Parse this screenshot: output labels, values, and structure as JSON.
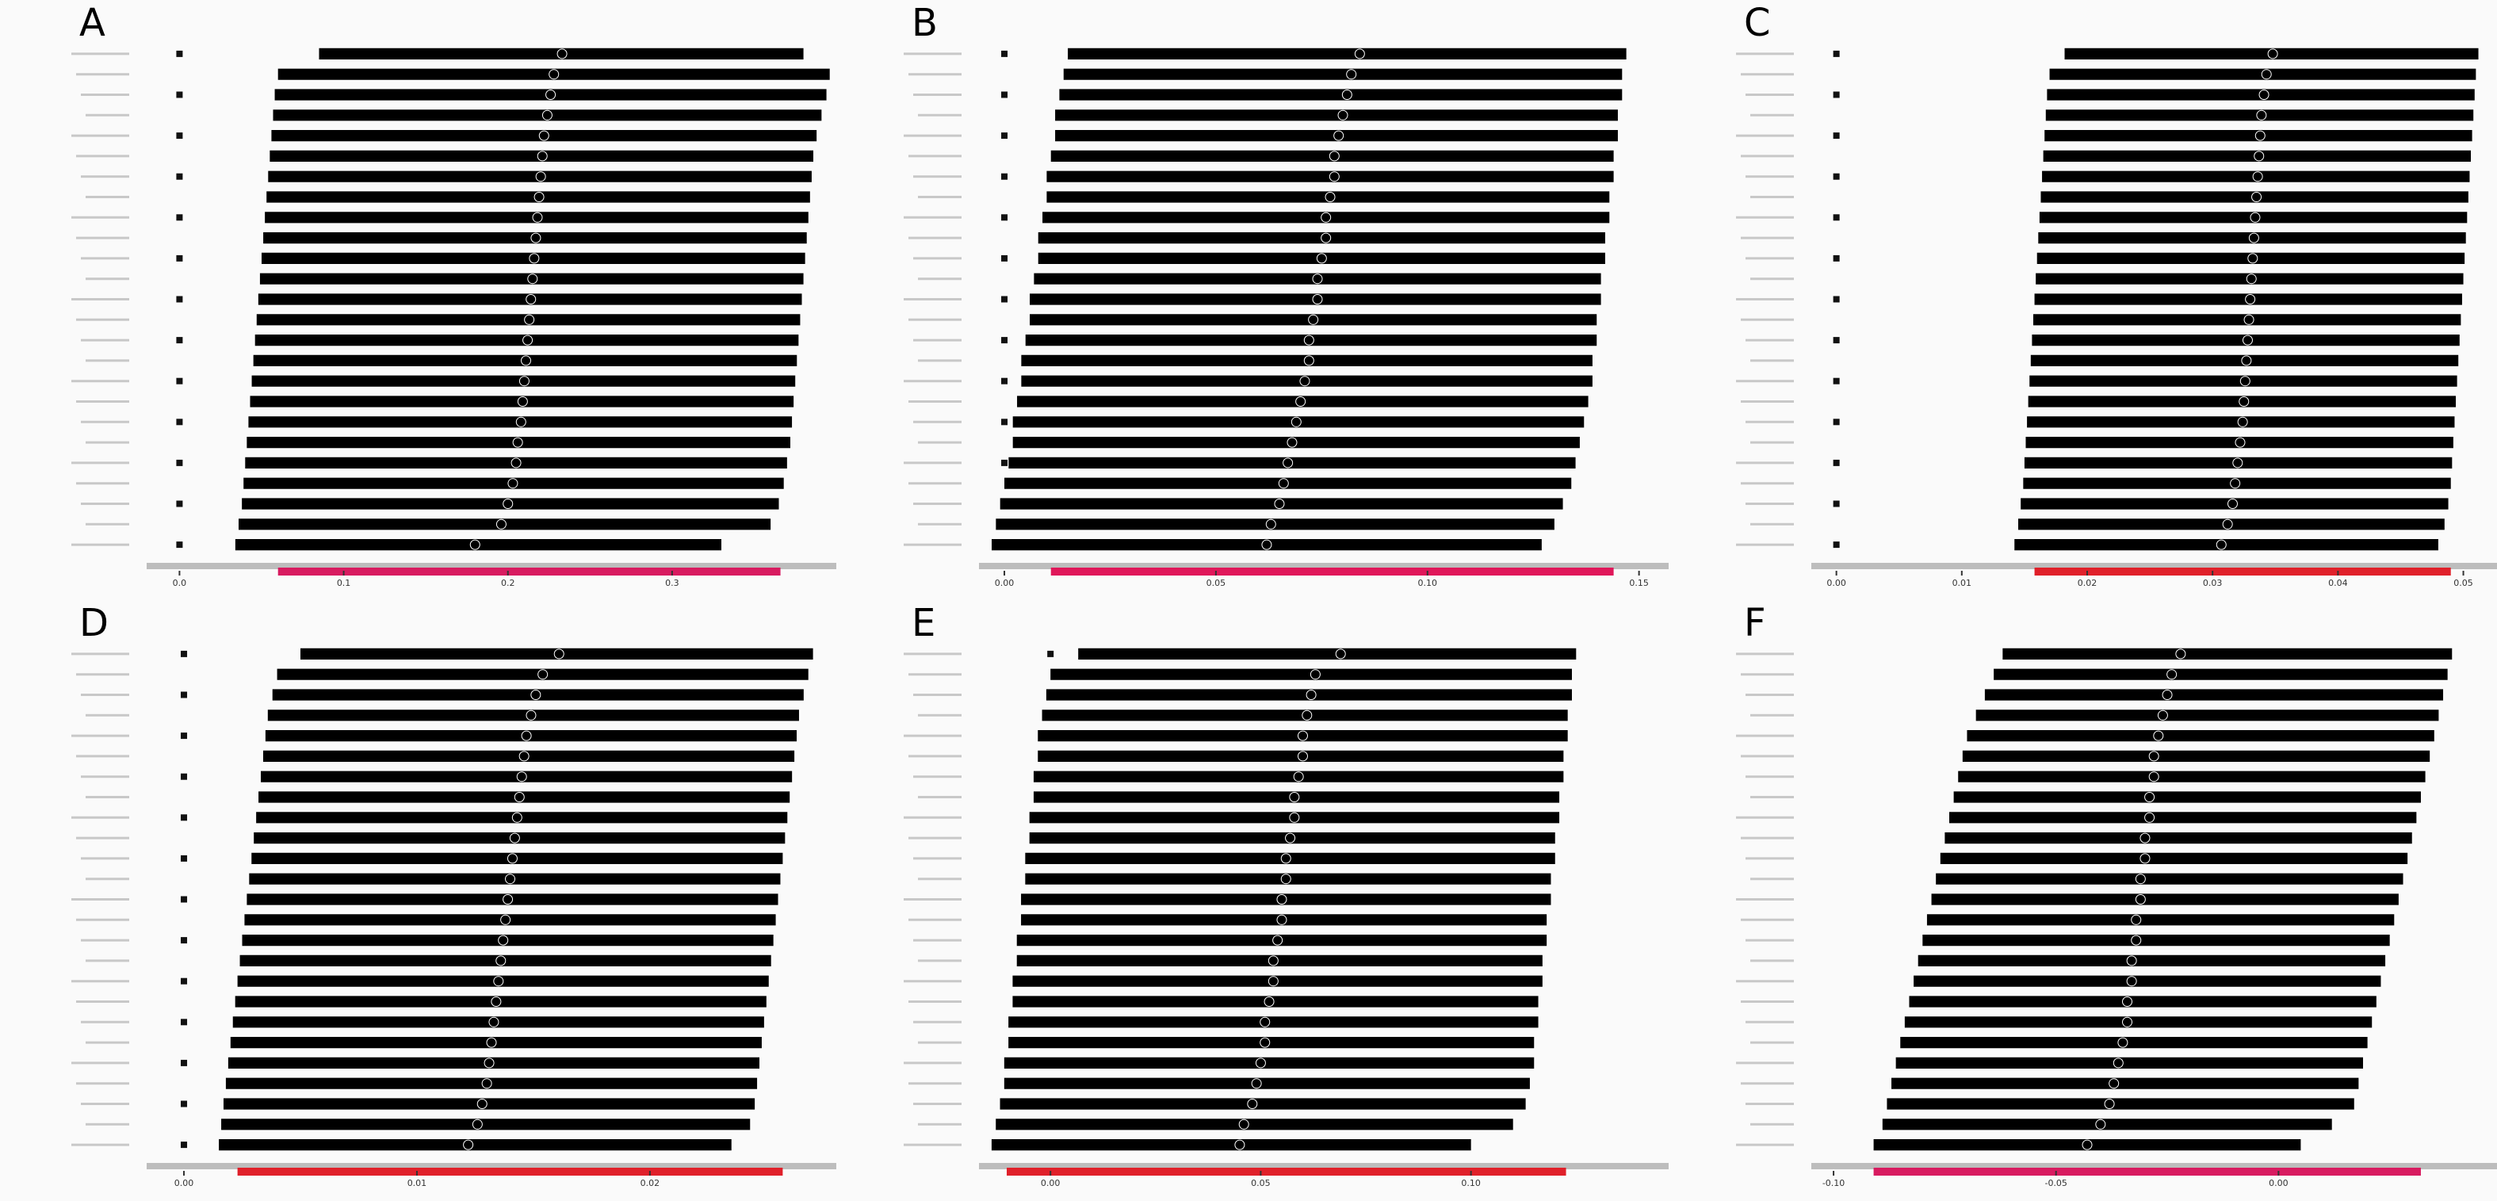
{
  "chart_data": [
    {
      "type": "forest",
      "title": "A",
      "color": "#000000",
      "xlim": [
        -0.02,
        0.4
      ],
      "xticks": [
        {
          "value": 0,
          "label": "0.0"
        },
        0.1,
        0.2,
        0.3
      ],
      "estimates": [
        0.233,
        0.228,
        0.226,
        0.224,
        0.222,
        0.221,
        0.22,
        0.219,
        0.218,
        0.217,
        0.216,
        0.215,
        0.214,
        0.213,
        0.212,
        0.211,
        0.21,
        0.209,
        0.208,
        0.206,
        0.205,
        0.203,
        0.2,
        0.196,
        0.18
      ],
      "lower": [
        0.085,
        0.06,
        0.058,
        0.057,
        0.056,
        0.055,
        0.054,
        0.053,
        0.052,
        0.051,
        0.05,
        0.049,
        0.048,
        0.047,
        0.046,
        0.045,
        0.044,
        0.043,
        0.042,
        0.041,
        0.04,
        0.039,
        0.038,
        0.036,
        0.034
      ],
      "upper": [
        0.38,
        0.396,
        0.394,
        0.391,
        0.388,
        0.386,
        0.385,
        0.384,
        0.383,
        0.382,
        0.381,
        0.38,
        0.379,
        0.378,
        0.377,
        0.376,
        0.375,
        0.374,
        0.373,
        0.372,
        0.37,
        0.368,
        0.365,
        0.36,
        0.33
      ],
      "overall": {
        "lower": 0.06,
        "upper": 0.366,
        "color": "#d81b60"
      }
    },
    {
      "type": "forest",
      "title": "B",
      "color": "#000000",
      "xlim": [
        -0.006,
        0.157
      ],
      "xticks": [
        {
          "value": 0,
          "label": "0.00"
        },
        0.05,
        {
          "value": 0.1,
          "label": "0.10"
        },
        0.15
      ],
      "estimates": [
        0.084,
        0.082,
        0.081,
        0.08,
        0.079,
        0.078,
        0.078,
        0.077,
        0.076,
        0.076,
        0.075,
        0.074,
        0.074,
        0.073,
        0.072,
        0.072,
        0.071,
        0.07,
        0.069,
        0.068,
        0.067,
        0.066,
        0.065,
        0.063,
        0.062
      ],
      "lower": [
        0.015,
        0.014,
        0.013,
        0.012,
        0.012,
        0.011,
        0.01,
        0.01,
        0.009,
        0.008,
        0.008,
        0.007,
        0.006,
        0.006,
        0.005,
        0.004,
        0.004,
        0.003,
        0.002,
        0.002,
        0.001,
        0.0,
        -0.001,
        -0.002,
        -0.003
      ],
      "upper": [
        0.147,
        0.146,
        0.146,
        0.145,
        0.145,
        0.144,
        0.144,
        0.143,
        0.143,
        0.142,
        0.142,
        0.141,
        0.141,
        0.14,
        0.14,
        0.139,
        0.139,
        0.138,
        0.137,
        0.136,
        0.135,
        0.134,
        0.132,
        0.13,
        0.127
      ],
      "overall": {
        "lower": 0.011,
        "upper": 0.144,
        "color": "#e0175a"
      }
    },
    {
      "type": "forest",
      "title": "C",
      "color": "#000000",
      "xlim": [
        -0.002,
        0.053
      ],
      "xticks": [
        {
          "value": 0,
          "label": "0.00"
        },
        0.01,
        0.02,
        0.03,
        0.04,
        0.05
      ],
      "estimates": [
        0.0348,
        0.0343,
        0.0341,
        0.0339,
        0.0338,
        0.0337,
        0.0336,
        0.0335,
        0.0334,
        0.0333,
        0.0332,
        0.0331,
        0.033,
        0.0329,
        0.0328,
        0.0327,
        0.0326,
        0.0325,
        0.0324,
        0.0322,
        0.032,
        0.0318,
        0.0316,
        0.0312,
        0.0307
      ],
      "lower": [
        0.0182,
        0.017,
        0.0168,
        0.0167,
        0.0166,
        0.0165,
        0.0164,
        0.0163,
        0.0162,
        0.0161,
        0.016,
        0.0159,
        0.0158,
        0.0157,
        0.0156,
        0.0155,
        0.0154,
        0.0153,
        0.0152,
        0.0151,
        0.015,
        0.0149,
        0.0147,
        0.0145,
        0.0142
      ],
      "upper": [
        0.0512,
        0.051,
        0.0509,
        0.0508,
        0.0507,
        0.0506,
        0.0505,
        0.0504,
        0.0503,
        0.0502,
        0.0501,
        0.05,
        0.0499,
        0.0498,
        0.0497,
        0.0496,
        0.0495,
        0.0494,
        0.0493,
        0.0492,
        0.0491,
        0.049,
        0.0488,
        0.0485,
        0.048
      ],
      "overall": {
        "lower": 0.0158,
        "upper": 0.049,
        "color": "#e0202a"
      }
    },
    {
      "type": "forest",
      "title": "D",
      "color": "#000000",
      "xlim": [
        -0.0016,
        0.028
      ],
      "xticks": [
        {
          "value": 0,
          "label": "0.00"
        },
        0.01,
        0.02
      ],
      "estimates": [
        0.0161,
        0.0154,
        0.0151,
        0.0149,
        0.0147,
        0.0146,
        0.0145,
        0.0144,
        0.0143,
        0.0142,
        0.0141,
        0.014,
        0.0139,
        0.0138,
        0.0137,
        0.0136,
        0.0135,
        0.0134,
        0.0133,
        0.0132,
        0.0131,
        0.013,
        0.0128,
        0.0126,
        0.0122
      ],
      "lower": [
        0.005,
        0.004,
        0.0038,
        0.0036,
        0.0035,
        0.0034,
        0.0033,
        0.0032,
        0.0031,
        0.003,
        0.0029,
        0.0028,
        0.0027,
        0.0026,
        0.0025,
        0.0024,
        0.0023,
        0.0022,
        0.0021,
        0.002,
        0.0019,
        0.0018,
        0.0017,
        0.0016,
        0.0015
      ],
      "upper": [
        0.027,
        0.0268,
        0.0266,
        0.0264,
        0.0263,
        0.0262,
        0.0261,
        0.026,
        0.0259,
        0.0258,
        0.0257,
        0.0256,
        0.0255,
        0.0254,
        0.0253,
        0.0252,
        0.0251,
        0.025,
        0.0249,
        0.0248,
        0.0247,
        0.0246,
        0.0245,
        0.0243,
        0.0235
      ],
      "overall": {
        "lower": 0.0023,
        "upper": 0.0257,
        "color": "#e0202a"
      }
    },
    {
      "type": "forest",
      "title": "E",
      "color": "#000000",
      "xlim": [
        -0.017,
        0.147
      ],
      "xticks": [
        {
          "value": 0,
          "label": "0.00"
        },
        0.05,
        {
          "value": 0.1,
          "label": "0.10"
        }
      ],
      "estimates": [
        0.069,
        0.063,
        0.062,
        0.061,
        0.06,
        0.06,
        0.059,
        0.058,
        0.058,
        0.057,
        0.056,
        0.056,
        0.055,
        0.055,
        0.054,
        0.053,
        0.053,
        0.052,
        0.051,
        0.051,
        0.05,
        0.049,
        0.048,
        0.046,
        0.045
      ],
      "lower": [
        0.0066,
        0.0,
        -0.001,
        -0.002,
        -0.003,
        -0.003,
        -0.004,
        -0.004,
        -0.005,
        -0.005,
        -0.006,
        -0.006,
        -0.007,
        -0.007,
        -0.008,
        -0.008,
        -0.009,
        -0.009,
        -0.01,
        -0.01,
        -0.011,
        -0.011,
        -0.012,
        -0.013,
        -0.014
      ],
      "upper": [
        0.125,
        0.124,
        0.124,
        0.123,
        0.123,
        0.122,
        0.122,
        0.121,
        0.121,
        0.12,
        0.12,
        0.119,
        0.119,
        0.118,
        0.118,
        0.117,
        0.117,
        0.116,
        0.116,
        0.115,
        0.115,
        0.114,
        0.113,
        0.11,
        0.1
      ],
      "overall": {
        "lower": -0.0104,
        "upper": 0.1226,
        "color": "#e0202a"
      }
    },
    {
      "type": "forest",
      "title": "F",
      "color": "#000000",
      "xlim": [
        -0.105,
        0.05
      ],
      "xticks": [
        {
          "value": -0.1,
          "label": "-0.10"
        },
        -0.05,
        {
          "value": 0,
          "label": "0.00"
        }
      ],
      "estimates": [
        -0.022,
        -0.024,
        -0.025,
        -0.026,
        -0.027,
        -0.028,
        -0.028,
        -0.029,
        -0.029,
        -0.03,
        -0.03,
        -0.031,
        -0.031,
        -0.032,
        -0.032,
        -0.033,
        -0.033,
        -0.034,
        -0.034,
        -0.035,
        -0.036,
        -0.037,
        -0.038,
        -0.04,
        -0.043
      ],
      "lower": [
        -0.062,
        -0.064,
        -0.066,
        -0.068,
        -0.07,
        -0.071,
        -0.072,
        -0.073,
        -0.074,
        -0.075,
        -0.076,
        -0.077,
        -0.078,
        -0.079,
        -0.08,
        -0.081,
        -0.082,
        -0.083,
        -0.084,
        -0.085,
        -0.086,
        -0.087,
        -0.088,
        -0.089,
        -0.091
      ],
      "upper": [
        0.039,
        0.038,
        0.037,
        0.036,
        0.035,
        0.034,
        0.033,
        0.032,
        0.031,
        0.03,
        0.029,
        0.028,
        0.027,
        0.026,
        0.025,
        0.024,
        0.023,
        0.022,
        0.021,
        0.02,
        0.019,
        0.018,
        0.017,
        0.012,
        0.005
      ],
      "overall": {
        "lower": -0.091,
        "upper": 0.032,
        "color": "#d81b60"
      }
    }
  ]
}
